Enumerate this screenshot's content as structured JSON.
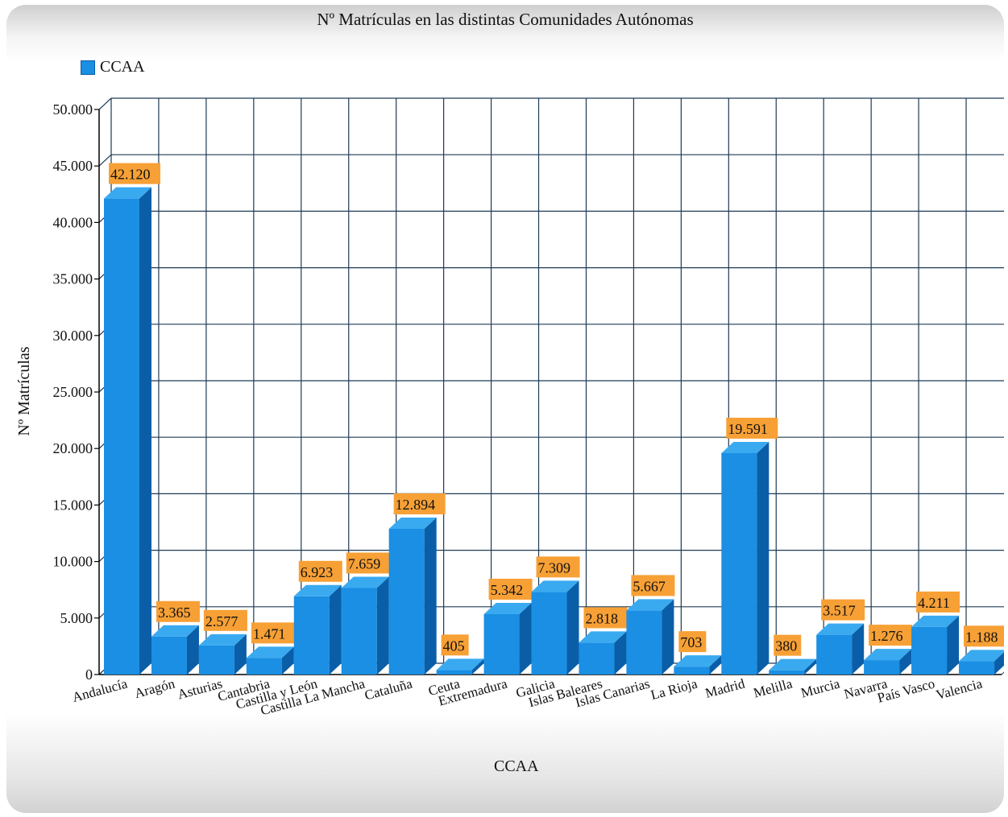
{
  "chart_data": {
    "type": "bar",
    "title": "Nº Matrículas en las distintas Comunidades Autónomas",
    "xlabel": "CCAA",
    "ylabel": "Nº Matrículas",
    "ylim": [
      0,
      50000
    ],
    "yticks": [
      "0",
      "5.000",
      "10.000",
      "15.000",
      "20.000",
      "25.000",
      "30.000",
      "35.000",
      "40.000",
      "45.000",
      "50.000"
    ],
    "grid": true,
    "legend_position": "top-left",
    "categories": [
      "Andalucía",
      "Aragón",
      "Asturias",
      "Cantabria",
      "Castilla y León",
      "Castilla La Mancha",
      "Cataluña",
      "Ceuta",
      "Extremadura",
      "Galicia",
      "Islas Baleares",
      "Islas Canarias",
      "La Rioja",
      "Madrid",
      "Melilla",
      "Murcia",
      "Navarra",
      "País Vasco",
      "Valencia"
    ],
    "series": [
      {
        "name": "CCAA",
        "values": [
          42120,
          3365,
          2577,
          1471,
          6923,
          7659,
          12894,
          405,
          5342,
          7309,
          2818,
          5667,
          703,
          19591,
          380,
          3517,
          1276,
          4211,
          1188
        ],
        "labels": [
          "42.120",
          "3.365",
          "2.577",
          "1.471",
          "6.923",
          "7.659",
          "12.894",
          "405",
          "5.342",
          "7.309",
          "2.818",
          "5.667",
          "703",
          "19.591",
          "380",
          "3.517",
          "1.276",
          "4.211",
          "1.188"
        ]
      }
    ],
    "colors": {
      "bar_front": "#1a8fe3",
      "bar_top": "#3aaaf0",
      "bar_side": "#0a5ea8",
      "label_bg": "#f7a035",
      "grid": "#1f3a55",
      "text": "#111111"
    }
  }
}
